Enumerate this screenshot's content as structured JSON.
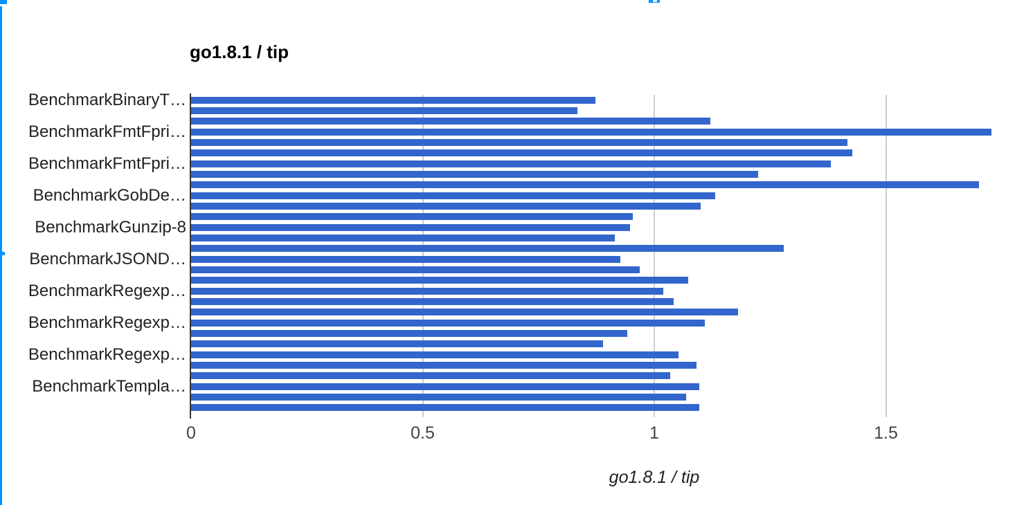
{
  "chart_data": {
    "type": "bar",
    "orientation": "horizontal",
    "title": "go1.8.1 / tip",
    "xlabel": "go1.8.1 / tip",
    "series_name": "go1.8.1 / tip",
    "xlim": [
      0,
      2
    ],
    "x_ticks": [
      {
        "value": 0,
        "label": "0"
      },
      {
        "value": 0.5,
        "label": "0.5"
      },
      {
        "value": 1,
        "label": "1"
      },
      {
        "value": 1.5,
        "label": "1.5"
      }
    ],
    "gridline_values": [
      0.5,
      1,
      1.5
    ],
    "grid": true,
    "legend": "none",
    "values": [
      0.873,
      0.834,
      1.121,
      1.728,
      1.417,
      1.428,
      1.381,
      1.224,
      1.701,
      1.132,
      1.1,
      0.954,
      0.947,
      0.915,
      1.279,
      0.927,
      0.969,
      1.073,
      1.019,
      1.042,
      1.181,
      1.109,
      0.942,
      0.89,
      1.052,
      1.091,
      1.034,
      1.097,
      1.069,
      1.097
    ],
    "category_label_every_n": 3,
    "visible_category_labels": [
      {
        "row_index": 0,
        "label": "BenchmarkBinaryT…"
      },
      {
        "row_index": 3,
        "label": "BenchmarkFmtFpri…"
      },
      {
        "row_index": 6,
        "label": "BenchmarkFmtFpri…"
      },
      {
        "row_index": 9,
        "label": "BenchmarkGobDe…"
      },
      {
        "row_index": 12,
        "label": "BenchmarkGunzip-8"
      },
      {
        "row_index": 15,
        "label": "BenchmarkJSOND…"
      },
      {
        "row_index": 18,
        "label": "BenchmarkRegexp…"
      },
      {
        "row_index": 21,
        "label": "BenchmarkRegexp…"
      },
      {
        "row_index": 24,
        "label": "BenchmarkRegexp…"
      },
      {
        "row_index": 27,
        "label": "BenchmarkTempla…"
      }
    ],
    "colors": {
      "bar": "#3366cc",
      "gridline": "#cccccc",
      "baseline": "#333333",
      "tick_text": "#444444",
      "label_text": "#222222"
    }
  },
  "screen_artifacts": {
    "accent_color": "#0095ff",
    "left_edge_line": true,
    "top_left_corner_fragment": true,
    "left_edge_tick": true,
    "top_cursor_fragment": true
  }
}
